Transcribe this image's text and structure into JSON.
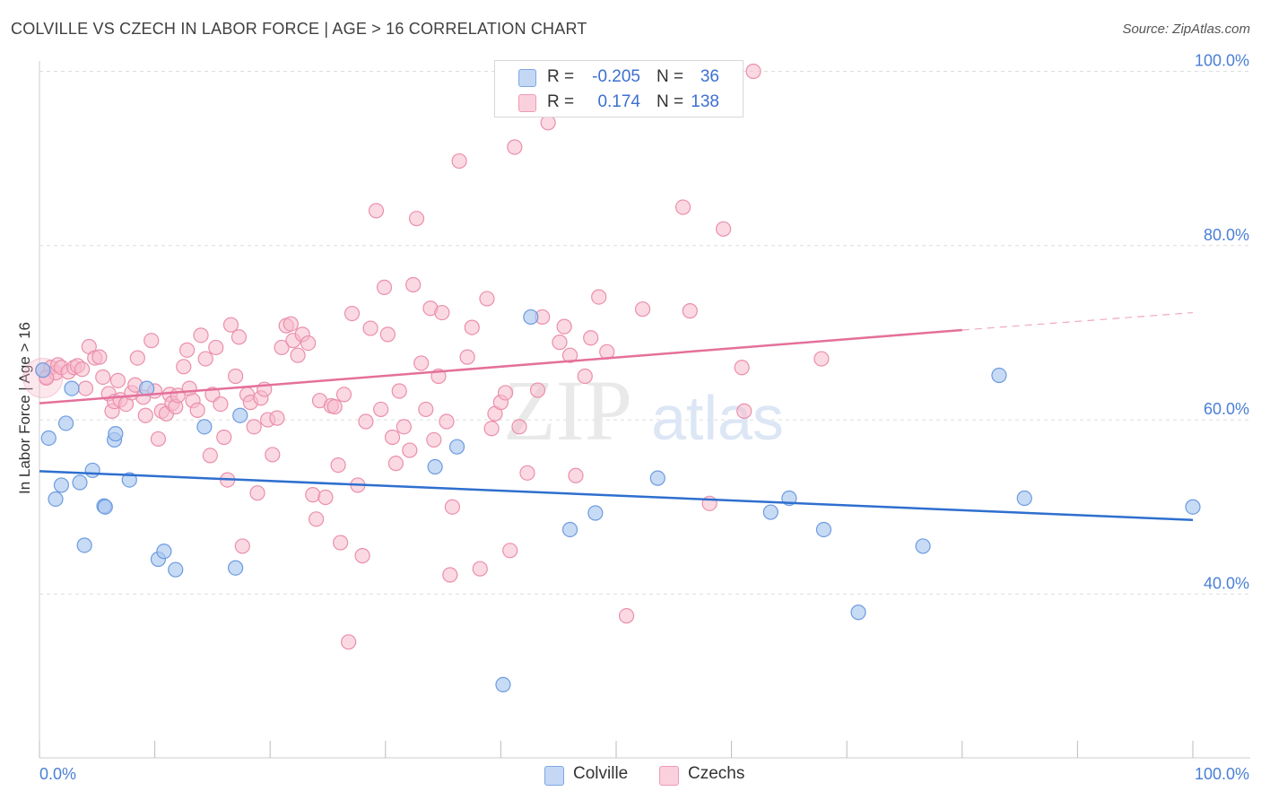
{
  "header": {
    "title": "COLVILLE VS CZECH IN LABOR FORCE | AGE > 16 CORRELATION CHART",
    "source": "Source: ZipAtlas.com"
  },
  "legend_top": {
    "rows": [
      {
        "r_label": "R =",
        "r_value": "-0.205",
        "n_label": "N =",
        "n_value": "36"
      },
      {
        "r_label": "R =",
        "r_value": "0.174",
        "n_label": "N =",
        "n_value": "138"
      }
    ]
  },
  "legend_bottom": {
    "items": [
      {
        "label": "Colville"
      },
      {
        "label": "Czechs"
      }
    ]
  },
  "watermark": {
    "zip": "ZIP",
    "atlas": "atlas"
  },
  "colors": {
    "colville_fill": "#aac7f0",
    "colville_stroke": "#6c9be0",
    "colville_line": "#2e6fcf",
    "czech_fill": "#f7b9cc",
    "czech_stroke": "#ea8fab",
    "czech_line": "#e4709a",
    "tick_text": "#4a7fd4",
    "grid": "#dddddd"
  },
  "chart_data": {
    "type": "scatter",
    "title": "COLVILLE VS CZECH IN LABOR FORCE | AGE > 16 CORRELATION CHART",
    "xlabel": "",
    "ylabel": "In Labor Force | Age > 16",
    "xlim": [
      0,
      100
    ],
    "ylim": [
      21.2,
      101.8
    ],
    "x_tick_labels": [
      "0.0%",
      "100.0%"
    ],
    "y_ticks": [
      40,
      60,
      80,
      100
    ],
    "y_tick_labels": [
      "40.0%",
      "60.0%",
      "80.0%",
      "100.0%"
    ],
    "grid": true,
    "legend_position": "top-center",
    "series": [
      {
        "name": "Colville",
        "r": -0.205,
        "n": 36,
        "trend": {
          "x": [
            0,
            100
          ],
          "y": [
            54.1,
            48.5
          ]
        },
        "points": [
          [
            0.3,
            65.7
          ],
          [
            0.8,
            57.9
          ],
          [
            1.4,
            50.9
          ],
          [
            1.9,
            52.5
          ],
          [
            2.3,
            59.6
          ],
          [
            2.8,
            63.6
          ],
          [
            3.5,
            52.8
          ],
          [
            3.9,
            45.6
          ],
          [
            4.6,
            54.2
          ],
          [
            5.6,
            50.1
          ],
          [
            5.7,
            50.0
          ],
          [
            6.5,
            57.7
          ],
          [
            6.6,
            58.4
          ],
          [
            7.8,
            53.1
          ],
          [
            9.3,
            63.6
          ],
          [
            10.3,
            44.0
          ],
          [
            10.8,
            44.9
          ],
          [
            11.8,
            42.8
          ],
          [
            14.3,
            59.2
          ],
          [
            17.0,
            43.0
          ],
          [
            17.4,
            60.5
          ],
          [
            34.3,
            54.6
          ],
          [
            36.2,
            56.9
          ],
          [
            40.2,
            29.6
          ],
          [
            42.6,
            71.8
          ],
          [
            46.0,
            47.4
          ],
          [
            48.2,
            49.3
          ],
          [
            53.6,
            53.3
          ],
          [
            63.4,
            49.4
          ],
          [
            65.0,
            51.0
          ],
          [
            68.0,
            47.4
          ],
          [
            71.0,
            37.9
          ],
          [
            76.6,
            45.5
          ],
          [
            83.2,
            65.1
          ],
          [
            85.4,
            51.0
          ],
          [
            100.0,
            50.0
          ]
        ]
      },
      {
        "name": "Czechs",
        "r": 0.174,
        "n": 138,
        "trend": {
          "x": [
            0,
            80
          ],
          "y": [
            61.9,
            70.3
          ]
        },
        "trend_dashed": {
          "x": [
            80,
            100
          ],
          "y": [
            70.3,
            72.3
          ]
        },
        "points": [
          [
            0.3,
            65.7
          ],
          [
            0.6,
            64.9
          ],
          [
            1.0,
            66.0
          ],
          [
            1.4,
            65.4
          ],
          [
            1.6,
            66.3
          ],
          [
            1.9,
            66.0
          ],
          [
            2.5,
            65.5
          ],
          [
            3.0,
            66.0
          ],
          [
            3.3,
            66.2
          ],
          [
            3.7,
            65.8
          ],
          [
            4.0,
            63.6
          ],
          [
            4.3,
            68.4
          ],
          [
            4.8,
            67.1
          ],
          [
            5.2,
            67.2
          ],
          [
            5.5,
            64.9
          ],
          [
            6.0,
            63.0
          ],
          [
            6.3,
            61.0
          ],
          [
            6.5,
            62.1
          ],
          [
            6.8,
            64.5
          ],
          [
            7.0,
            62.3
          ],
          [
            7.5,
            61.8
          ],
          [
            8.0,
            63.1
          ],
          [
            8.3,
            64.0
          ],
          [
            8.5,
            67.1
          ],
          [
            9.0,
            62.6
          ],
          [
            9.2,
            60.5
          ],
          [
            9.7,
            69.1
          ],
          [
            10.0,
            63.3
          ],
          [
            10.3,
            57.8
          ],
          [
            10.6,
            61.0
          ],
          [
            11.0,
            60.7
          ],
          [
            11.3,
            62.9
          ],
          [
            11.5,
            61.9
          ],
          [
            11.8,
            61.5
          ],
          [
            12.0,
            62.8
          ],
          [
            12.5,
            66.1
          ],
          [
            12.8,
            68.0
          ],
          [
            13.0,
            63.6
          ],
          [
            13.3,
            62.2
          ],
          [
            13.7,
            61.1
          ],
          [
            14.0,
            69.7
          ],
          [
            14.4,
            67.0
          ],
          [
            14.8,
            55.9
          ],
          [
            15.0,
            62.9
          ],
          [
            15.3,
            68.3
          ],
          [
            15.7,
            61.8
          ],
          [
            16.0,
            58.0
          ],
          [
            16.3,
            53.1
          ],
          [
            16.6,
            70.9
          ],
          [
            17.0,
            65.0
          ],
          [
            17.3,
            69.5
          ],
          [
            17.6,
            45.5
          ],
          [
            18.0,
            62.9
          ],
          [
            18.3,
            62.0
          ],
          [
            18.6,
            59.2
          ],
          [
            18.9,
            51.6
          ],
          [
            19.2,
            62.5
          ],
          [
            19.5,
            63.5
          ],
          [
            19.8,
            60.0
          ],
          [
            20.2,
            56.0
          ],
          [
            20.6,
            60.2
          ],
          [
            21.0,
            68.3
          ],
          [
            21.4,
            70.8
          ],
          [
            21.8,
            71.0
          ],
          [
            22.0,
            69.1
          ],
          [
            22.4,
            67.4
          ],
          [
            22.8,
            69.8
          ],
          [
            23.3,
            68.8
          ],
          [
            23.7,
            51.4
          ],
          [
            24.0,
            48.6
          ],
          [
            24.3,
            62.2
          ],
          [
            24.8,
            51.1
          ],
          [
            25.3,
            61.6
          ],
          [
            25.6,
            61.5
          ],
          [
            25.9,
            54.8
          ],
          [
            26.1,
            45.9
          ],
          [
            26.4,
            62.9
          ],
          [
            26.8,
            34.5
          ],
          [
            27.1,
            72.2
          ],
          [
            27.6,
            52.5
          ],
          [
            28.0,
            44.4
          ],
          [
            28.3,
            59.8
          ],
          [
            28.7,
            70.5
          ],
          [
            29.2,
            84.0
          ],
          [
            29.6,
            61.2
          ],
          [
            29.9,
            75.2
          ],
          [
            30.2,
            69.8
          ],
          [
            30.6,
            58.0
          ],
          [
            30.9,
            55.0
          ],
          [
            31.2,
            63.3
          ],
          [
            31.6,
            59.2
          ],
          [
            32.1,
            56.5
          ],
          [
            32.4,
            75.5
          ],
          [
            32.7,
            83.1
          ],
          [
            33.1,
            66.5
          ],
          [
            33.5,
            61.2
          ],
          [
            33.9,
            72.8
          ],
          [
            34.2,
            57.7
          ],
          [
            34.6,
            65.0
          ],
          [
            34.9,
            72.3
          ],
          [
            35.3,
            59.8
          ],
          [
            35.6,
            42.2
          ],
          [
            35.8,
            50.0
          ],
          [
            36.4,
            89.7
          ],
          [
            37.1,
            67.2
          ],
          [
            37.5,
            70.6
          ],
          [
            38.2,
            42.9
          ],
          [
            38.8,
            73.9
          ],
          [
            39.2,
            59.0
          ],
          [
            39.5,
            60.7
          ],
          [
            40.0,
            62.0
          ],
          [
            40.4,
            63.1
          ],
          [
            40.8,
            45.0
          ],
          [
            41.2,
            91.3
          ],
          [
            41.6,
            59.2
          ],
          [
            42.3,
            53.9
          ],
          [
            43.2,
            63.4
          ],
          [
            43.6,
            71.8
          ],
          [
            44.1,
            94.1
          ],
          [
            45.1,
            68.9
          ],
          [
            45.5,
            70.7
          ],
          [
            46.0,
            67.4
          ],
          [
            46.5,
            53.6
          ],
          [
            47.3,
            65.0
          ],
          [
            47.8,
            69.4
          ],
          [
            48.5,
            74.1
          ],
          [
            49.2,
            67.8
          ],
          [
            50.9,
            37.5
          ],
          [
            52.3,
            72.7
          ],
          [
            55.8,
            84.4
          ],
          [
            56.4,
            72.5
          ],
          [
            58.1,
            50.4
          ],
          [
            59.3,
            81.9
          ],
          [
            60.9,
            66.0
          ],
          [
            61.1,
            61.0
          ],
          [
            61.9,
            100.0
          ],
          [
            67.8,
            67.0
          ],
          [
            0.6,
            64.8
          ]
        ]
      }
    ]
  }
}
